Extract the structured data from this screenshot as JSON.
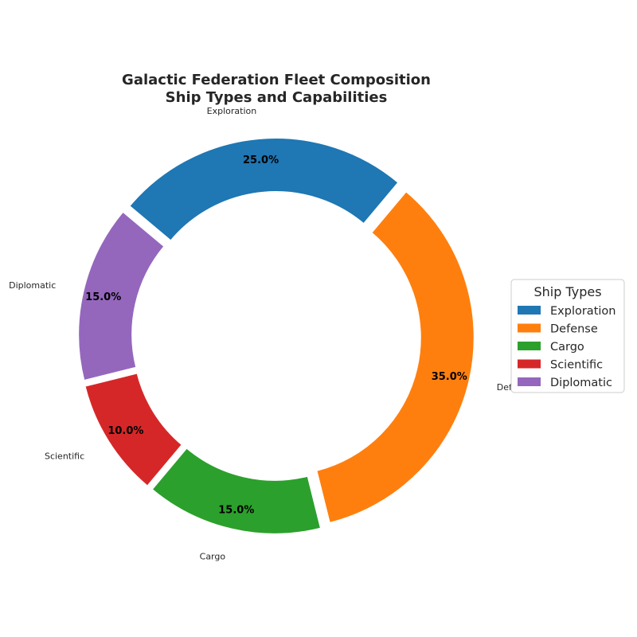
{
  "chart_data": {
    "type": "pie",
    "variant": "donut",
    "title": [
      "Galactic Federation Fleet Composition",
      "Ship Types and Capabilities"
    ],
    "categories": [
      "Exploration",
      "Defense",
      "Cargo",
      "Scientific",
      "Diplomatic"
    ],
    "values": [
      25,
      35,
      15,
      10,
      15
    ],
    "value_labels": [
      "25.0%",
      "35.0%",
      "15.0%",
      "10.0%",
      "15.0%"
    ],
    "colors": [
      "#1f77b4",
      "#ff7f0e",
      "#2ca02c",
      "#d62728",
      "#9467bd"
    ],
    "legend": {
      "title": "Ship Types",
      "placement": "right",
      "entries": [
        "Exploration",
        "Defense",
        "Cargo",
        "Scientific",
        "Diplomatic"
      ]
    }
  }
}
